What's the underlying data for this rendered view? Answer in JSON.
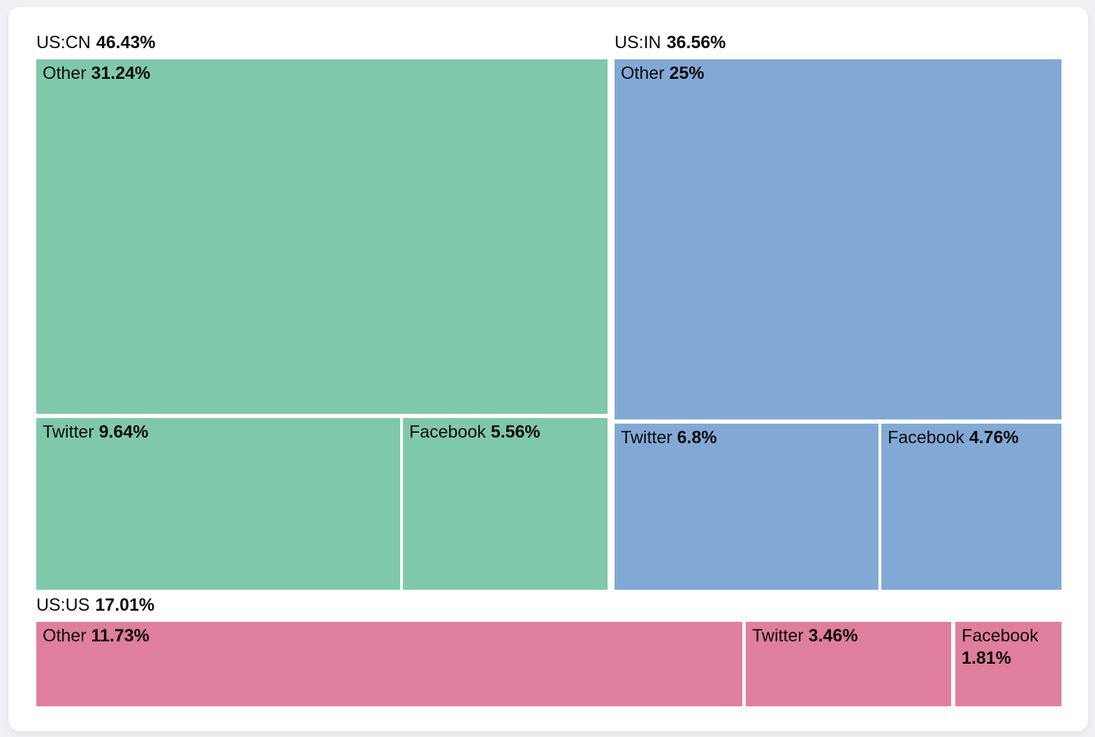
{
  "chart_data": {
    "type": "treemap",
    "layout": "grouped treemap; US:CN top-left, US:IN top-right, US:US bottom full-width; white gutters between tiles; group label above each group",
    "groups": [
      {
        "label": "US:CN",
        "value": 46.43,
        "value_label": "46.43%",
        "color": "#80c8ac",
        "children": [
          {
            "label": "Other",
            "value": 31.24,
            "value_label": "31.24%"
          },
          {
            "label": "Twitter",
            "value": 9.64,
            "value_label": "9.64%"
          },
          {
            "label": "Facebook",
            "value": 5.56,
            "value_label": "5.56%"
          }
        ]
      },
      {
        "label": "US:IN",
        "value": 36.56,
        "value_label": "36.56%",
        "color": "#82a9d6",
        "children": [
          {
            "label": "Other",
            "value": 25,
            "value_label": "25%"
          },
          {
            "label": "Twitter",
            "value": 6.8,
            "value_label": "6.8%"
          },
          {
            "label": "Facebook",
            "value": 4.76,
            "value_label": "4.76%"
          }
        ]
      },
      {
        "label": "US:US",
        "value": 17.01,
        "value_label": "17.01%",
        "color": "#e07e9d",
        "children": [
          {
            "label": "Other",
            "value": 11.73,
            "value_label": "11.73%"
          },
          {
            "label": "Twitter",
            "value": 3.46,
            "value_label": "3.46%"
          },
          {
            "label": "Facebook",
            "value": 1.81,
            "value_label": "1.81%"
          }
        ]
      }
    ],
    "text_color": "#0a0a0a",
    "gutter_color": "#ffffff"
  }
}
